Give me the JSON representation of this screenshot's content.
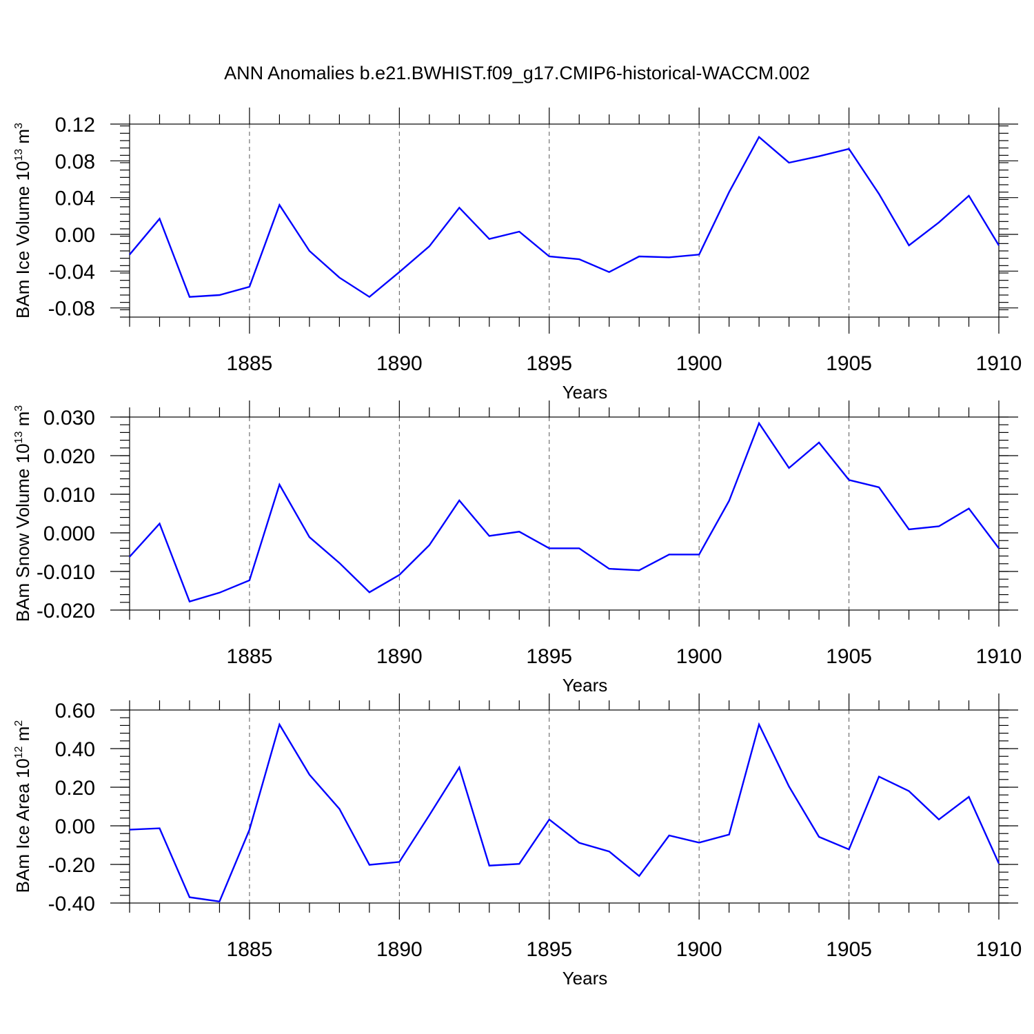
{
  "figure": {
    "title": "ANN Anomalies b.e21.BWHIST.f09_g17.CMIP6-historical-WACCM.002"
  },
  "style": {
    "line_color": "#0000FF",
    "axis_color": "#000000",
    "grid_color": "#555555"
  },
  "chart_data": [
    {
      "type": "line",
      "xlabel": "Years",
      "ylabel": "BAm Ice Volume 10",
      "ylabel_exponent": "13",
      "ylabel_unit": " m",
      "ylabel_unit_exponent": "3",
      "xlim": [
        1881,
        1910
      ],
      "ylim": [
        -0.09,
        0.12
      ],
      "x_ticks": [
        1885,
        1890,
        1895,
        1900,
        1905,
        1910
      ],
      "x_tick_labels": [
        "1885",
        "1890",
        "1895",
        "1900",
        "1905",
        "1910"
      ],
      "y_ticks": [
        -0.08,
        -0.04,
        0.0,
        0.04,
        0.08,
        0.12
      ],
      "y_tick_labels": [
        "-0.08",
        "-0.04",
        "0.00",
        "0.04",
        "0.08",
        "0.12"
      ],
      "y_minor_step": 0.008,
      "grid": "vertical dashed at major x ticks",
      "x": [
        1881,
        1882,
        1883,
        1884,
        1885,
        1886,
        1887,
        1888,
        1889,
        1890,
        1891,
        1892,
        1893,
        1894,
        1895,
        1896,
        1897,
        1898,
        1899,
        1900,
        1901,
        1902,
        1903,
        1904,
        1905,
        1906,
        1907,
        1908,
        1909,
        1910
      ],
      "series": [
        {
          "values": [
            -0.022,
            0.017,
            -0.068,
            -0.066,
            -0.057,
            0.032,
            -0.018,
            -0.047,
            -0.068,
            -0.041,
            -0.013,
            0.029,
            -0.005,
            0.003,
            -0.024,
            -0.027,
            -0.041,
            -0.024,
            -0.025,
            -0.022,
            0.046,
            0.106,
            0.078,
            0.085,
            0.093,
            0.044,
            -0.012,
            0.013,
            0.042,
            -0.012
          ]
        }
      ]
    },
    {
      "type": "line",
      "xlabel": "Years",
      "ylabel": "BAm Snow Volume 10",
      "ylabel_exponent": "13",
      "ylabel_unit": " m",
      "ylabel_unit_exponent": "3",
      "xlim": [
        1881,
        1910
      ],
      "ylim": [
        -0.02,
        0.03
      ],
      "x_ticks": [
        1885,
        1890,
        1895,
        1900,
        1905,
        1910
      ],
      "x_tick_labels": [
        "1885",
        "1890",
        "1895",
        "1900",
        "1905",
        "1910"
      ],
      "y_ticks": [
        -0.02,
        -0.01,
        0.0,
        0.01,
        0.02,
        0.03
      ],
      "y_tick_labels": [
        "-0.020",
        "-0.010",
        "0.000",
        "0.010",
        "0.020",
        "0.030"
      ],
      "y_minor_step": 0.002,
      "grid": "vertical dashed at major x ticks",
      "x": [
        1881,
        1882,
        1883,
        1884,
        1885,
        1886,
        1887,
        1888,
        1889,
        1890,
        1891,
        1892,
        1893,
        1894,
        1895,
        1896,
        1897,
        1898,
        1899,
        1900,
        1901,
        1902,
        1903,
        1904,
        1905,
        1906,
        1907,
        1908,
        1909,
        1910
      ],
      "series": [
        {
          "values": [
            -0.0062,
            0.0024,
            -0.0178,
            -0.0155,
            -0.0123,
            0.0125,
            -0.0011,
            -0.0078,
            -0.0154,
            -0.0109,
            -0.0032,
            0.0084,
            -0.0008,
            0.0003,
            -0.004,
            -0.004,
            -0.0093,
            -0.0097,
            -0.0056,
            -0.0056,
            0.0083,
            0.0284,
            0.0168,
            0.0234,
            0.0137,
            0.0118,
            0.0009,
            0.0017,
            0.0063,
            -0.004
          ]
        }
      ]
    },
    {
      "type": "line",
      "xlabel": "Years",
      "ylabel": "BAm Ice Area 10",
      "ylabel_exponent": "12",
      "ylabel_unit": " m",
      "ylabel_unit_exponent": "2",
      "xlim": [
        1881,
        1910
      ],
      "ylim": [
        -0.4,
        0.6
      ],
      "x_ticks": [
        1885,
        1890,
        1895,
        1900,
        1905,
        1910
      ],
      "x_tick_labels": [
        "1885",
        "1890",
        "1895",
        "1900",
        "1905",
        "1910"
      ],
      "y_ticks": [
        -0.4,
        -0.2,
        0.0,
        0.2,
        0.4,
        0.6
      ],
      "y_tick_labels": [
        "-0.40",
        "-0.20",
        "0.00",
        "0.20",
        "0.40",
        "0.60"
      ],
      "y_minor_step": 0.04,
      "grid": "vertical dashed at major x ticks",
      "x": [
        1881,
        1882,
        1883,
        1884,
        1885,
        1886,
        1887,
        1888,
        1889,
        1890,
        1891,
        1892,
        1893,
        1894,
        1895,
        1896,
        1897,
        1898,
        1899,
        1900,
        1901,
        1902,
        1903,
        1904,
        1905,
        1906,
        1907,
        1908,
        1909,
        1910
      ],
      "series": [
        {
          "values": [
            -0.02,
            -0.013,
            -0.37,
            -0.392,
            -0.02,
            0.525,
            0.265,
            0.088,
            -0.202,
            -0.187,
            0.055,
            0.303,
            -0.206,
            -0.197,
            0.033,
            -0.088,
            -0.133,
            -0.26,
            -0.05,
            -0.087,
            -0.045,
            0.525,
            0.204,
            -0.057,
            -0.122,
            0.255,
            0.18,
            0.033,
            0.15,
            -0.195
          ]
        }
      ]
    }
  ]
}
